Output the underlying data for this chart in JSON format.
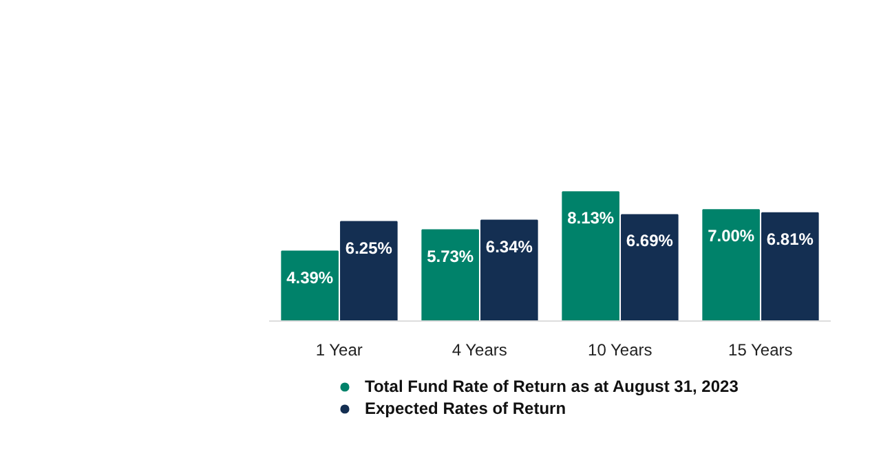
{
  "chart_data": {
    "type": "bar",
    "categories": [
      "1 Year",
      "4 Years",
      "10 Years",
      "15 Years"
    ],
    "series": [
      {
        "name": "Total Fund Rate of Return as at August 31, 2023",
        "color": "#00826a",
        "values": [
          4.39,
          5.73,
          8.13,
          7.0
        ],
        "value_labels": [
          "4.39%",
          "5.73%",
          "8.13%",
          "7.00%"
        ]
      },
      {
        "name": "Expected Rates of Return",
        "color": "#142f52",
        "values": [
          6.25,
          6.34,
          6.69,
          6.81
        ],
        "value_labels": [
          "6.25%",
          "6.34%",
          "6.69%",
          "6.81%"
        ]
      }
    ],
    "legend": "bottom"
  }
}
